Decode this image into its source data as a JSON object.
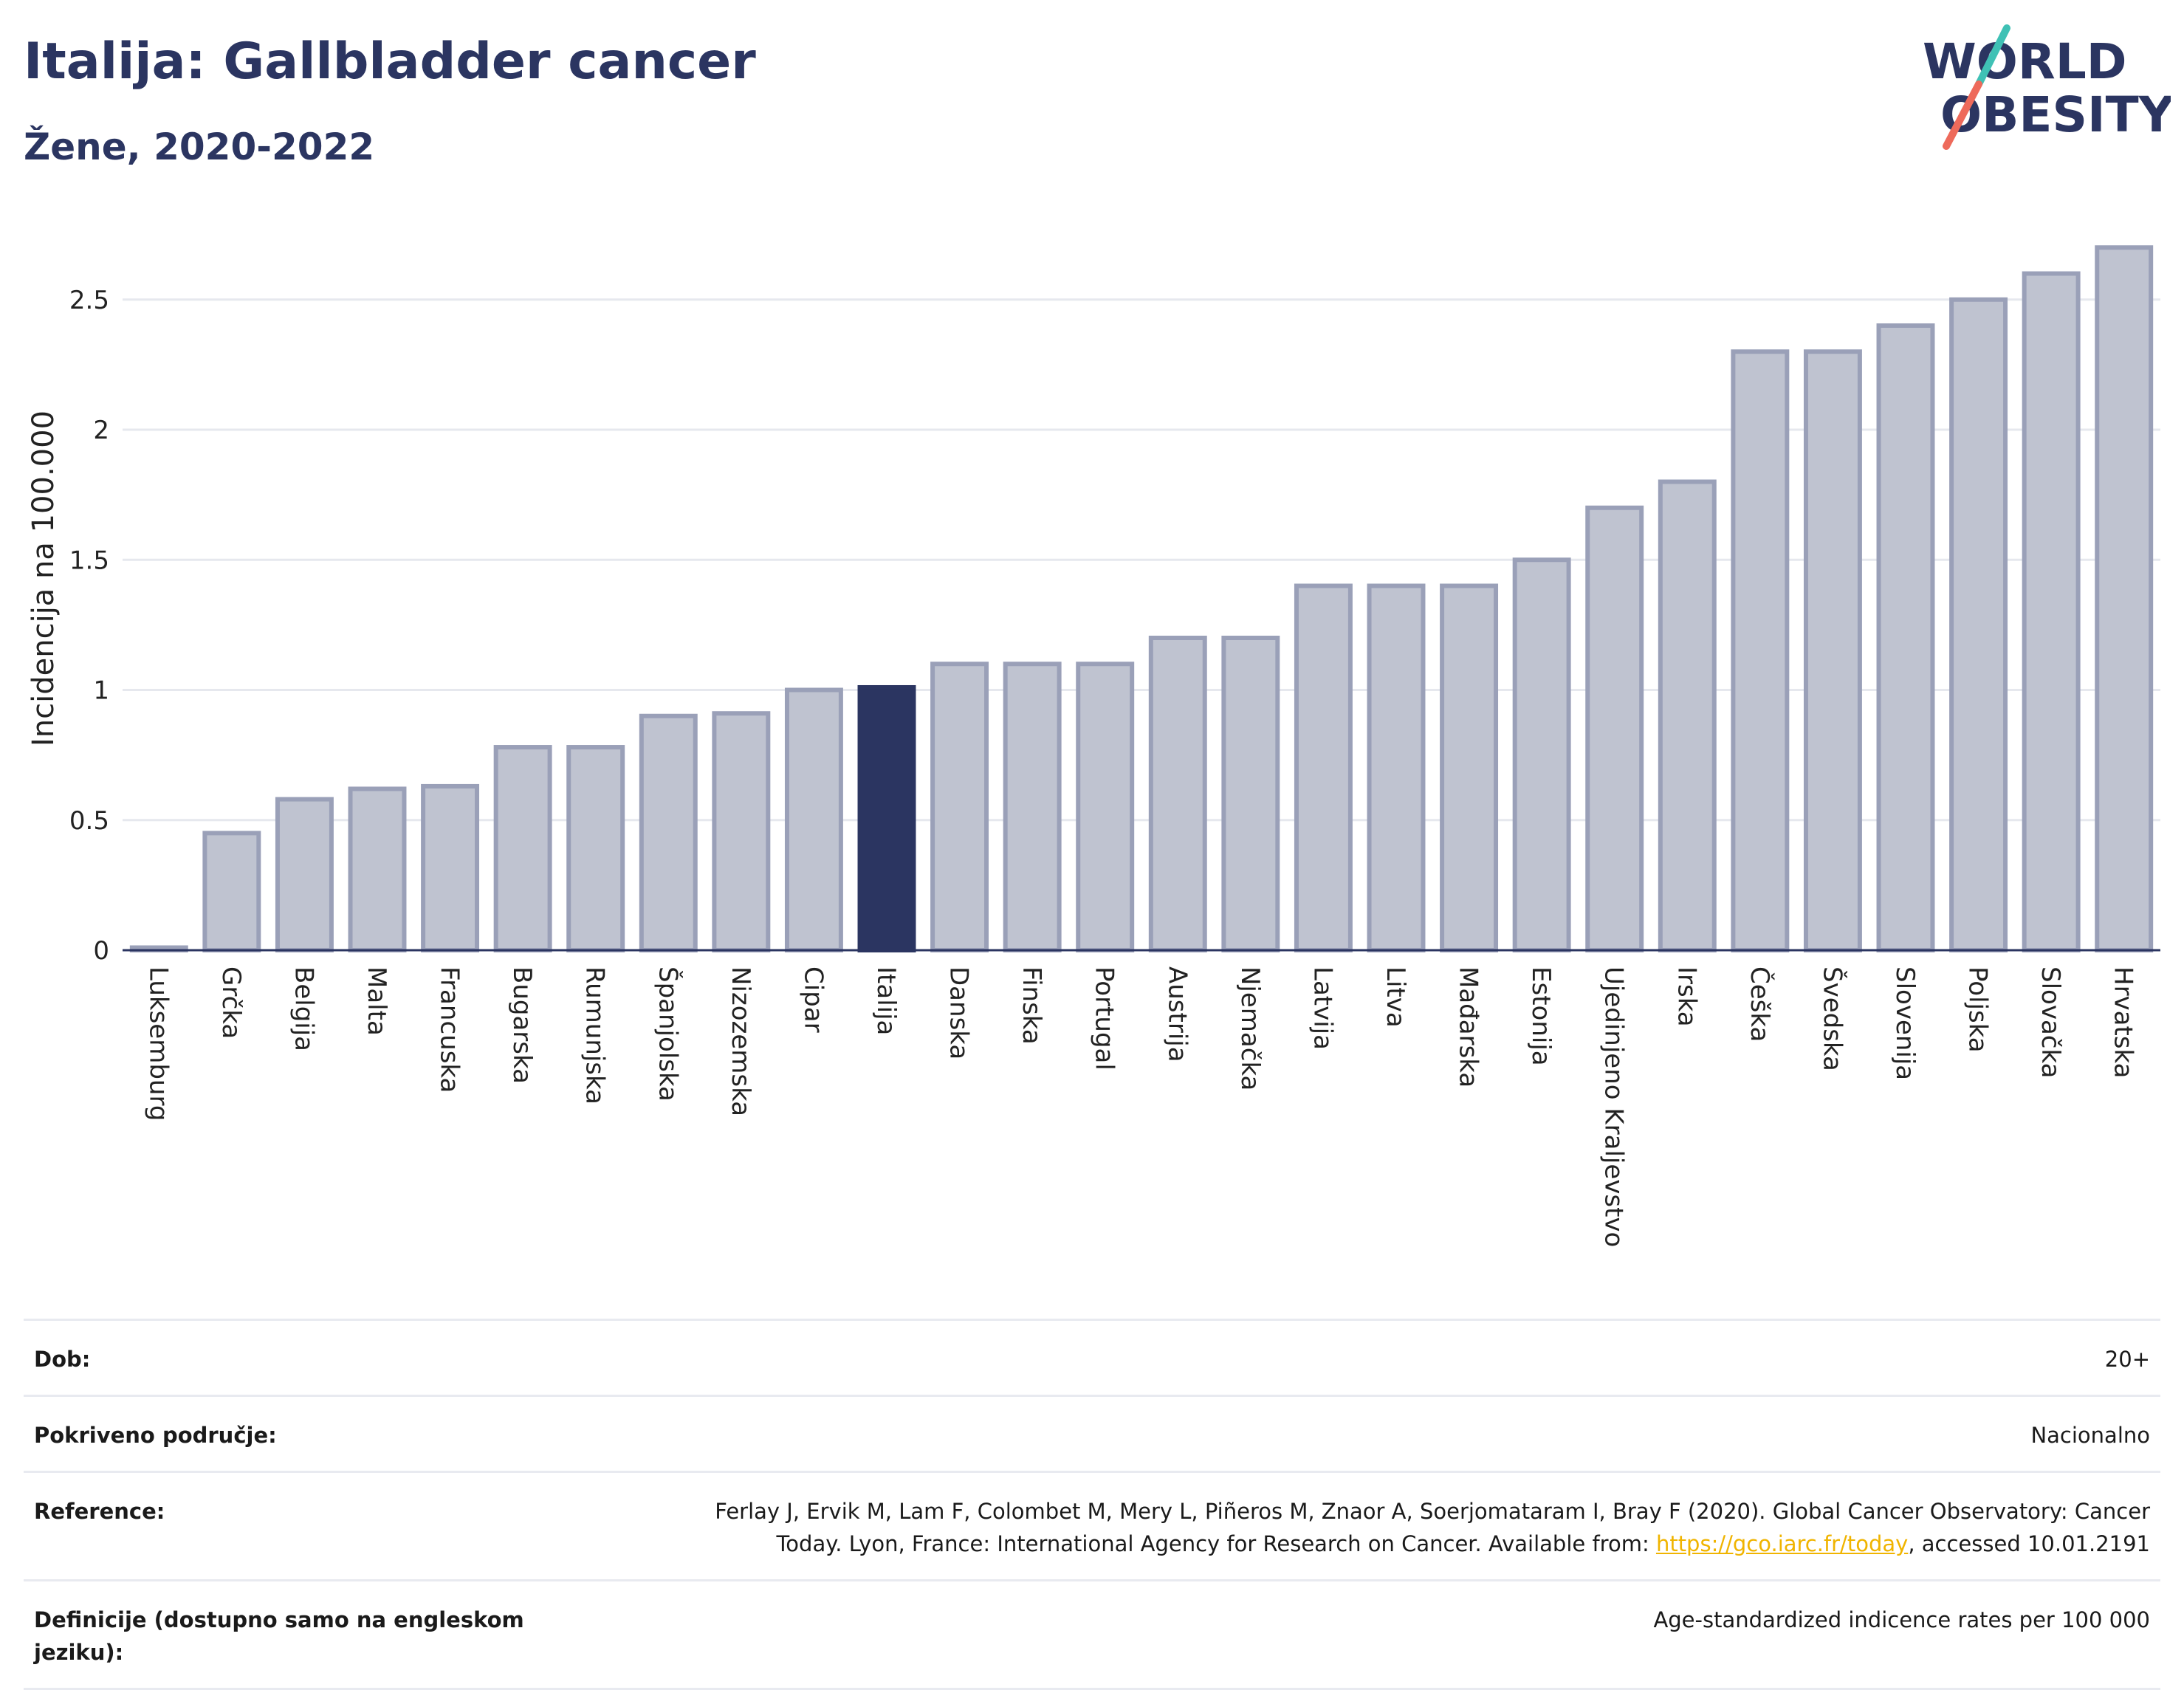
{
  "title": "Italija: Gallbladder cancer",
  "subtitle": "Žene, 2020-2022",
  "logo": {
    "line1": "WORLD",
    "line2": "OBESITY"
  },
  "colors": {
    "highlight": "#2b3561",
    "bar_fill": "#bfc3d0",
    "bar_stroke": "#9aa0b8",
    "grid": "#e6e8ee"
  },
  "chart_data": {
    "type": "bar",
    "ylabel": "Incidencija na 100.000",
    "ylim": [
      0,
      2.8
    ],
    "yticks": [
      "0",
      "0.5",
      "1",
      "1.5",
      "2",
      "2.5"
    ],
    "ytick_values": [
      0,
      0.5,
      1,
      1.5,
      2,
      2.5
    ],
    "highlight": "Italija",
    "categories": [
      "Luksemburg",
      "Grčka",
      "Belgija",
      "Malta",
      "Francuska",
      "Bugarska",
      "Rumunjska",
      "Španjolska",
      "Nizozemska",
      "Cipar",
      "Italija",
      "Danska",
      "Finska",
      "Portugal",
      "Austrija",
      "Njemačka",
      "Latvija",
      "Litva",
      "Mađarska",
      "Estonija",
      "Ujedinjeno Kraljevstvo",
      "Irska",
      "Češka",
      "Švedska",
      "Slovenija",
      "Poljska",
      "Slovačka",
      "Hrvatska"
    ],
    "values": [
      0.01,
      0.45,
      0.58,
      0.62,
      0.63,
      0.78,
      0.78,
      0.9,
      0.91,
      1.0,
      1.01,
      1.1,
      1.1,
      1.1,
      1.2,
      1.2,
      1.4,
      1.4,
      1.4,
      1.5,
      1.7,
      1.8,
      2.3,
      2.3,
      2.4,
      2.5,
      2.6,
      2.7
    ]
  },
  "info": [
    {
      "label": "Dob:",
      "value": "20+"
    },
    {
      "label": "Pokriveno područje:",
      "value": "Nacionalno"
    },
    {
      "label": "Reference:",
      "value_pre": "Ferlay J, Ervik M, Lam F, Colombet M, Mery L, Piñeros M, Znaor A, Soerjomataram I, Bray F (2020). Global Cancer Observatory: Cancer Today. Lyon, France: International Agency for Research on Cancer. Available from: ",
      "link": "https://gco.iarc.fr/today",
      "value_post": ", accessed 10.01.2191"
    },
    {
      "label": "Definicije (dostupno samo na engleskom jeziku):",
      "value": "Age-standardized indicence rates per 100 000"
    }
  ]
}
